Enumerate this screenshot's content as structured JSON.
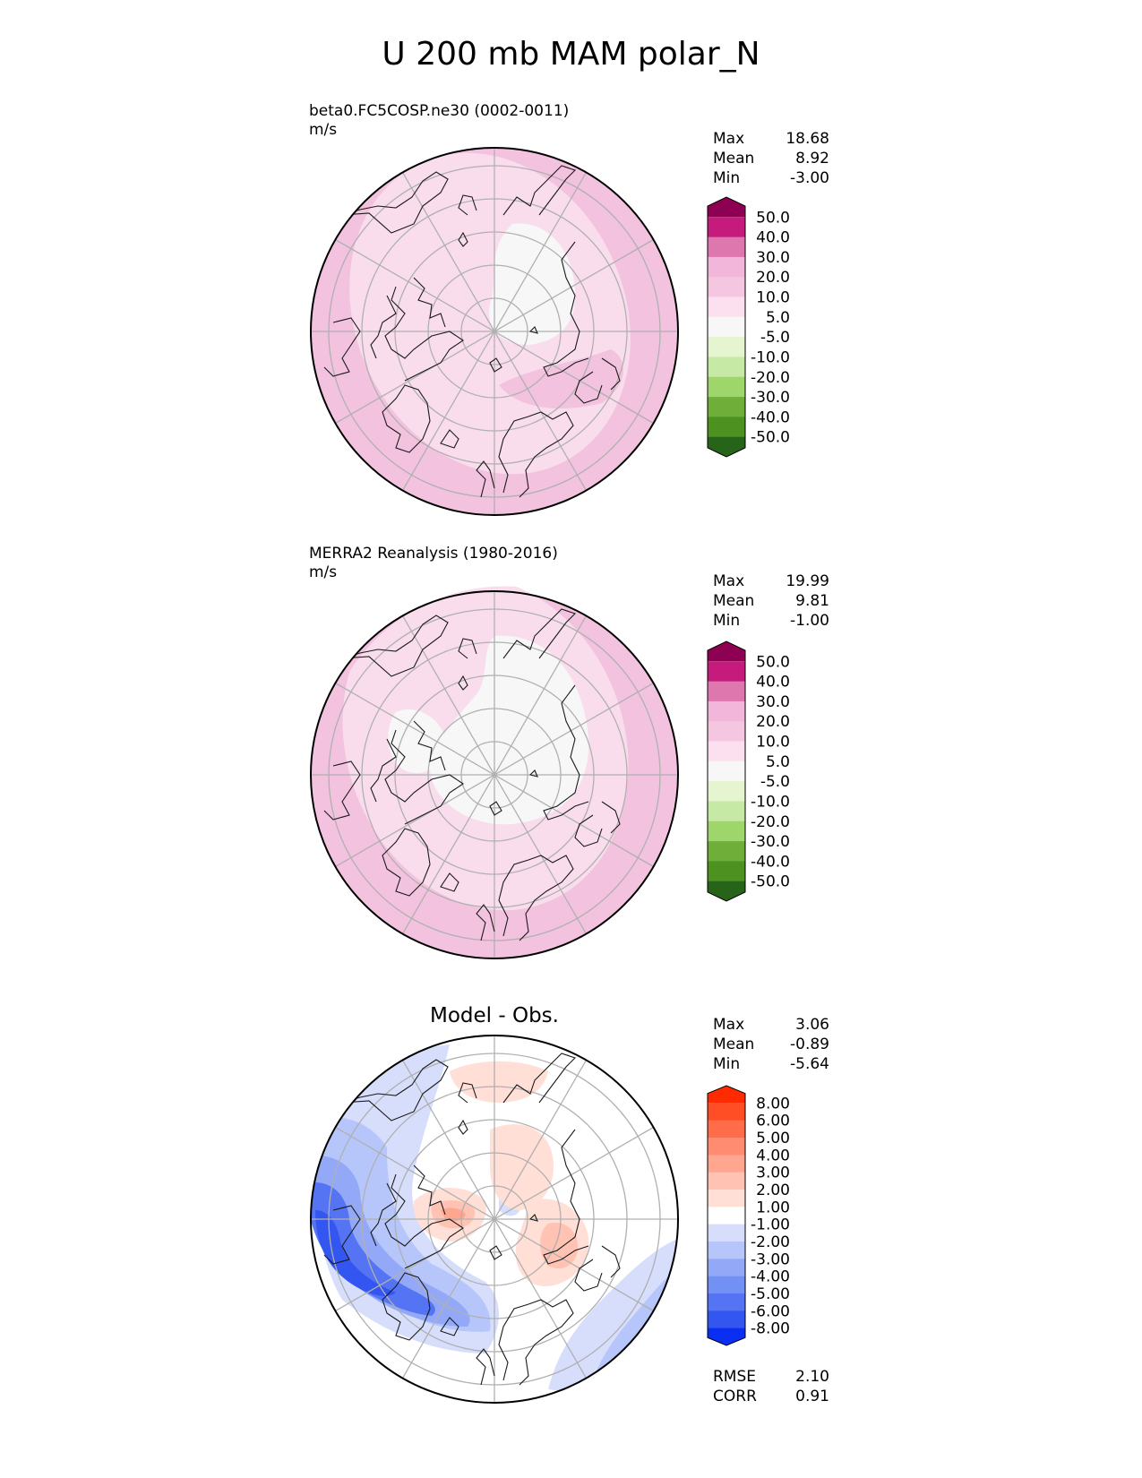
{
  "figure": {
    "title": "U 200 mb MAM polar_N"
  },
  "chart_data": [
    {
      "type": "heatmap",
      "projection": "north polar stereographic",
      "label": "beta0.FC5COSP.ne30 (0002-0011)",
      "units": "m/s",
      "stats": [
        {
          "name": "Max",
          "value": "18.68"
        },
        {
          "name": "Mean",
          "value": "8.92"
        },
        {
          "name": "Min",
          "value": "-3.00"
        }
      ],
      "colorbar": {
        "levels": [
          "50.0",
          "40.0",
          "30.0",
          "20.0",
          "10.0",
          "5.0",
          "-5.0",
          "-10.0",
          "-20.0",
          "-30.0",
          "-40.0",
          "-50.0"
        ],
        "colors": [
          "#8e0152",
          "#c51b7d",
          "#de77ae",
          "#f1b6da",
          "#f5c6e0",
          "#fde0ef",
          "#f7f7f7",
          "#e6f5d0",
          "#c7e9a6",
          "#9fd66b",
          "#6fae38",
          "#4d9221",
          "#276419"
        ]
      },
      "fill_colors": {
        "outer": "#f2c2df",
        "mid": "#f9dded",
        "inner": "#f7f7f7"
      }
    },
    {
      "type": "heatmap",
      "projection": "north polar stereographic",
      "label": "MERRA2 Reanalysis (1980-2016)",
      "units": "m/s",
      "stats": [
        {
          "name": "Max",
          "value": "19.99"
        },
        {
          "name": "Mean",
          "value": "9.81"
        },
        {
          "name": "Min",
          "value": "-1.00"
        }
      ],
      "colorbar": {
        "levels": [
          "50.0",
          "40.0",
          "30.0",
          "20.0",
          "10.0",
          "5.0",
          "-5.0",
          "-10.0",
          "-20.0",
          "-30.0",
          "-40.0",
          "-50.0"
        ],
        "colors": [
          "#8e0152",
          "#c51b7d",
          "#de77ae",
          "#f1b6da",
          "#f5c6e0",
          "#fde0ef",
          "#f7f7f7",
          "#e6f5d0",
          "#c7e9a6",
          "#9fd66b",
          "#6fae38",
          "#4d9221",
          "#276419"
        ]
      },
      "fill_colors": {
        "outer": "#f2c2df",
        "mid": "#f9dded",
        "inner": "#f7f7f7"
      }
    },
    {
      "type": "heatmap",
      "projection": "north polar stereographic",
      "title": "Model - Obs.",
      "stats": [
        {
          "name": "Max",
          "value": "3.06"
        },
        {
          "name": "Mean",
          "value": "-0.89"
        },
        {
          "name": "Min",
          "value": "-5.64"
        }
      ],
      "metrics": [
        {
          "name": "RMSE",
          "value": "2.10"
        },
        {
          "name": "CORR",
          "value": "0.91"
        }
      ],
      "colorbar": {
        "levels": [
          "8.00",
          "6.00",
          "5.00",
          "4.00",
          "3.00",
          "2.00",
          "1.00",
          "-1.00",
          "-2.00",
          "-3.00",
          "-4.00",
          "-5.00",
          "-6.00",
          "-8.00"
        ],
        "colors": [
          "#ff2a00",
          "#ff4d26",
          "#ff6c4a",
          "#ff8b70",
          "#ffa690",
          "#ffc2b3",
          "#ffdfd6",
          "#ffffff",
          "#d6defc",
          "#b6c6fa",
          "#93a9f7",
          "#7390f5",
          "#5474f3",
          "#3356f0",
          "#0a2ff2"
        ]
      },
      "fill_colors": {
        "background": "#ffffff"
      }
    }
  ]
}
